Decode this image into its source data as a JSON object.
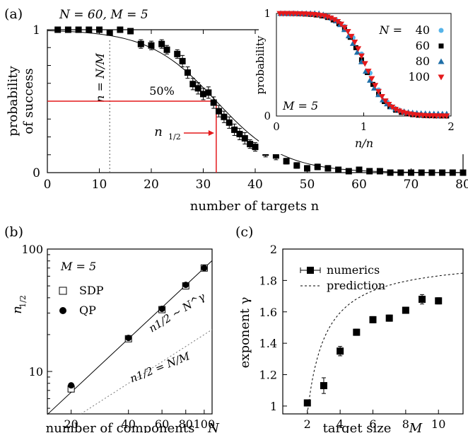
{
  "chart_data": [
    {
      "panel": "(a)",
      "type": "scatter",
      "annotation_params": "N = 60, M = 5",
      "xlabel": "number of targets n",
      "ylabel_line1": "probability",
      "ylabel_line2": "of success",
      "xlim": [
        0,
        80
      ],
      "ylim": [
        0,
        1
      ],
      "xticks": [
        "0",
        "10",
        "20",
        "30",
        "40",
        "50",
        "60",
        "70",
        "80"
      ],
      "yticks": [
        "0",
        "1"
      ],
      "vline_label": "n = N/M",
      "vline_x": 12,
      "half_label": "50%",
      "n_half_label": "n1/2",
      "n_half_x": 32.5,
      "half_y": 0.5,
      "series": [
        {
          "marker": "square",
          "x": [
            2,
            4,
            6,
            8,
            10,
            12,
            14,
            16,
            18,
            20,
            22,
            23,
            25,
            26,
            27,
            28,
            29,
            30,
            31,
            32,
            33,
            34,
            35,
            36,
            37,
            38,
            39,
            40,
            42,
            44,
            46,
            48,
            50,
            52,
            54,
            56,
            58,
            60,
            62,
            64,
            66,
            68,
            70,
            72,
            74,
            76,
            78,
            80
          ],
          "y": [
            1,
            1,
            1,
            1,
            1,
            0.98,
            1,
            0.99,
            0.9,
            0.89,
            0.9,
            0.86,
            0.83,
            0.78,
            0.7,
            0.62,
            0.59,
            0.55,
            0.56,
            0.49,
            0.43,
            0.39,
            0.35,
            0.3,
            0.27,
            0.24,
            0.2,
            0.18,
            0.14,
            0.12,
            0.08,
            0.05,
            0.03,
            0.04,
            0.03,
            0.02,
            0.01,
            0.02,
            0.01,
            0.01,
            0,
            0,
            0,
            0,
            0,
            0,
            0,
            0
          ],
          "err": [
            0,
            0,
            0,
            0,
            0,
            0.02,
            0,
            0.01,
            0.03,
            0.03,
            0.03,
            0.03,
            0.03,
            0.04,
            0.04,
            0.04,
            0.04,
            0.04,
            0.04,
            0.04,
            0.04,
            0.04,
            0.04,
            0.04,
            0.04,
            0.04,
            0.03,
            0.03,
            0.03,
            0.03,
            0.02,
            0.02,
            0.02,
            0.02,
            0.02,
            0.01,
            0.01,
            0.01,
            0.01,
            0.01,
            0,
            0,
            0,
            0,
            0,
            0,
            0,
            0
          ]
        }
      ],
      "fit_curve": {
        "x0": 32.5,
        "width": 6.5
      }
    },
    {
      "panel": "(a) inset",
      "type": "scatter",
      "xlabel": "n/n1/2",
      "ylabel": "probability",
      "xlim": [
        0,
        2
      ],
      "ylim": [
        0,
        1
      ],
      "xticks": [
        "0",
        "1",
        "2"
      ],
      "yticks": [
        "0",
        "1"
      ],
      "annotation": "M = 5",
      "legend_title": "N =",
      "series": [
        {
          "name": "40",
          "color": "#56b4e9",
          "marker": "circle"
        },
        {
          "name": "60",
          "color": "#000000",
          "marker": "square"
        },
        {
          "name": "80",
          "color": "#1f6fa8",
          "marker": "triangle-up"
        },
        {
          "name": "100",
          "color": "#e41a1c",
          "marker": "triangle-down"
        }
      ]
    },
    {
      "panel": "(b)",
      "type": "scatter",
      "xscale": "log",
      "yscale": "log",
      "xlabel": "number of components N",
      "ylabel": "n1/2",
      "xlim": [
        15,
        110
      ],
      "ylim": [
        4.5,
        100
      ],
      "xticks": [
        "20",
        "40",
        "60",
        "80",
        "100"
      ],
      "yticks": [
        "10",
        "100"
      ],
      "annotation": "M = 5",
      "legend": [
        {
          "name": "SDP",
          "marker": "open-square"
        },
        {
          "name": "QP",
          "marker": "filled-circle"
        }
      ],
      "fit_label": "n1/2 ~ N^γ",
      "ref_label": "n1/2 = N/M",
      "series": [
        {
          "name": "SDP",
          "x": [
            20,
            40,
            60,
            80,
            100
          ],
          "y": [
            7.2,
            18.5,
            32,
            50,
            70
          ]
        },
        {
          "name": "QP",
          "x": [
            20,
            40,
            60,
            80,
            100
          ],
          "y": [
            7.7,
            18.8,
            32.5,
            51,
            70
          ]
        }
      ]
    },
    {
      "panel": "(c)",
      "type": "scatter",
      "xlabel": "target size M",
      "ylabel": "exponent γ",
      "xlim": [
        0.5,
        11.5
      ],
      "ylim": [
        0.95,
        2.0
      ],
      "xticks": [
        "2",
        "4",
        "6",
        "8",
        "10"
      ],
      "yticks": [
        "1",
        "1.2",
        "1.4",
        "1.6",
        "1.8",
        "2"
      ],
      "legend": [
        {
          "name": "numerics",
          "marker": "square-errorbar"
        },
        {
          "name": "prediction",
          "marker": "dashed"
        }
      ],
      "series": [
        {
          "name": "numerics",
          "x": [
            2,
            3,
            4,
            5,
            6,
            7,
            8,
            9,
            10
          ],
          "y": [
            1.02,
            1.13,
            1.35,
            1.47,
            1.55,
            1.56,
            1.61,
            1.68,
            1.67
          ],
          "err": [
            0.02,
            0.05,
            0.03,
            0.02,
            0.02,
            0.02,
            0.02,
            0.03,
            0.02
          ]
        }
      ]
    }
  ]
}
